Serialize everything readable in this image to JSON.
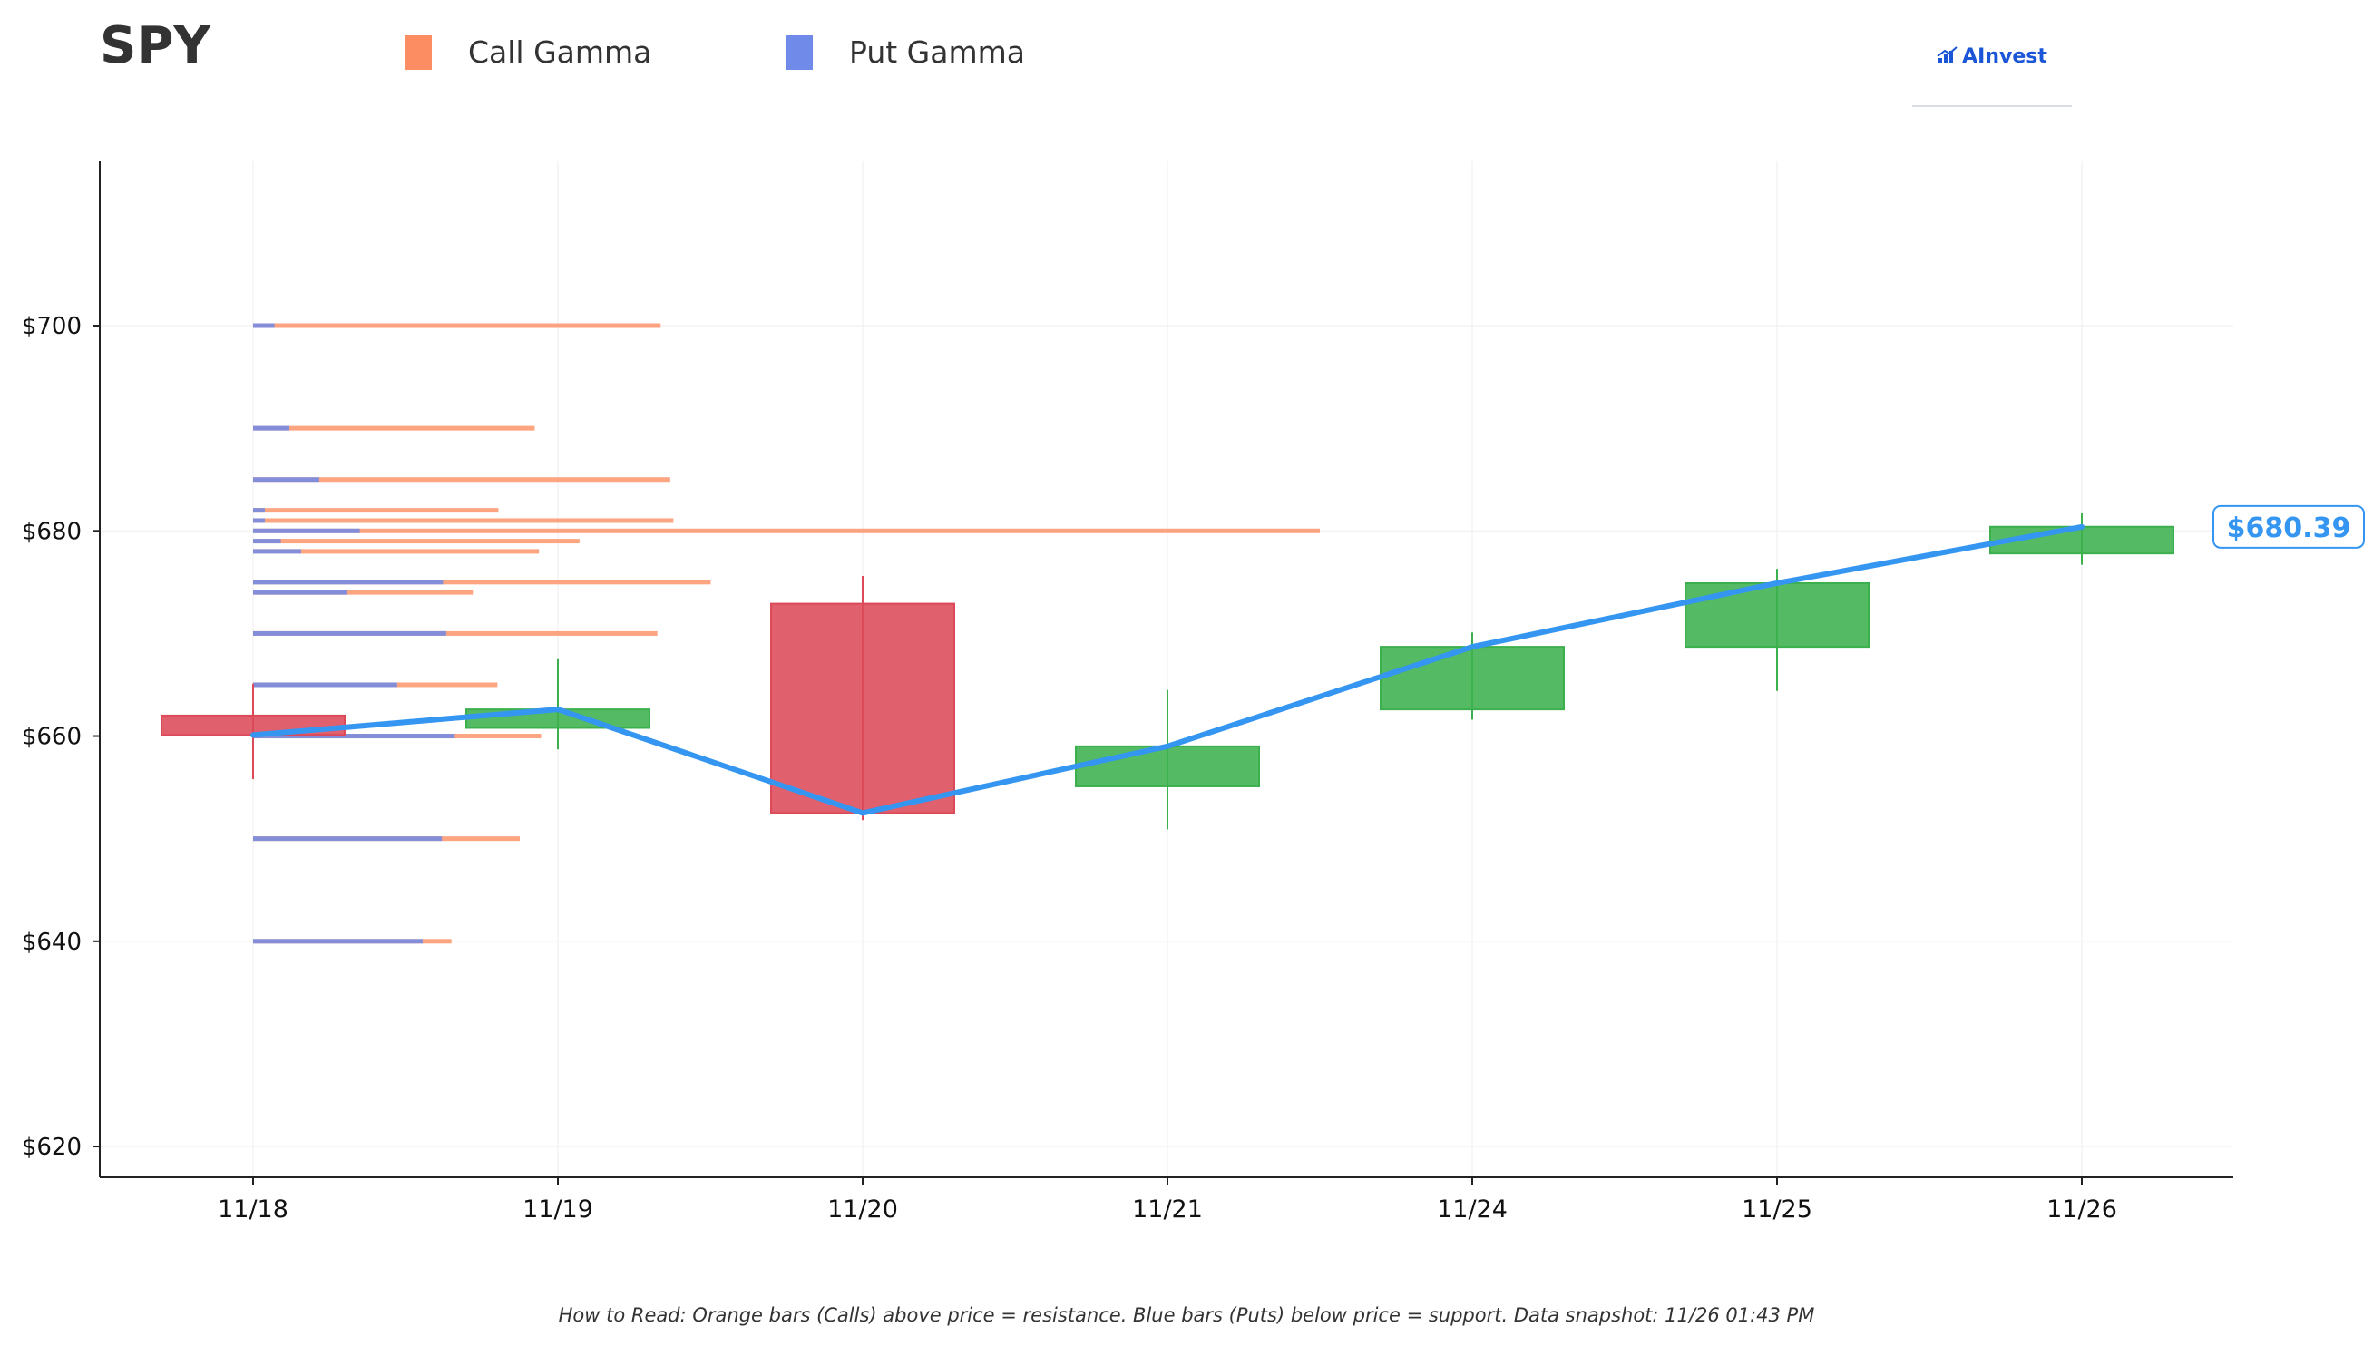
{
  "header": {
    "ticker": "SPY",
    "legend": [
      {
        "label": "Call Gamma",
        "color": "#fc8d62"
      },
      {
        "label": "Put Gamma",
        "color": "#6f8ae8"
      }
    ],
    "logo_text": "AInvest"
  },
  "footnote": "How to Read: Orange bars (Calls) above price = resistance. Blue bars (Puts) below price = support. Data snapshot: 11/26 01:43 PM",
  "price_label": "$680.39",
  "colors": {
    "up": "#3cb04d",
    "down": "#dc4a5a",
    "price_line": "#3596f2",
    "call_gamma": "#fc8d62",
    "put_gamma": "#6f8ae8",
    "axis": "#222222",
    "grid": "#eeeeee"
  },
  "chart_data": {
    "type": "candlestick",
    "title": "SPY",
    "xlabel": "",
    "ylabel": "",
    "categories": [
      "11/18",
      "11/19",
      "11/20",
      "11/21",
      "11/24",
      "11/25",
      "11/26"
    ],
    "ylim": [
      617,
      716
    ],
    "yticks": [
      620,
      640,
      660,
      680,
      700
    ],
    "ytick_labels": [
      "$620",
      "$640",
      "$660",
      "$680",
      "$700"
    ],
    "grid": true,
    "legend_placement": "top",
    "candles": [
      {
        "date": "11/18",
        "open": 662.0,
        "close": 660.1,
        "high": 665.1,
        "low": 655.8
      },
      {
        "date": "11/19",
        "open": 660.8,
        "close": 662.6,
        "high": 667.5,
        "low": 658.7
      },
      {
        "date": "11/20",
        "open": 672.9,
        "close": 652.5,
        "high": 675.6,
        "low": 651.8
      },
      {
        "date": "11/21",
        "open": 655.1,
        "close": 659.0,
        "high": 664.5,
        "low": 650.9
      },
      {
        "date": "11/24",
        "open": 662.6,
        "close": 668.7,
        "high": 670.1,
        "low": 661.6
      },
      {
        "date": "11/25",
        "open": 668.7,
        "close": 674.9,
        "high": 676.3,
        "low": 664.4
      },
      {
        "date": "11/26",
        "open": 677.8,
        "close": 680.4,
        "high": 681.7,
        "low": 676.7
      }
    ],
    "price_series": {
      "name": "",
      "values": [
        660.1,
        662.6,
        652.5,
        659.0,
        668.7,
        674.9,
        680.39
      ]
    },
    "gamma_levels": {
      "x_unit": "relative exposure (0-1)",
      "levels": [
        {
          "strike": 700,
          "call": 0.382,
          "put": 0.02
        },
        {
          "strike": 690,
          "call": 0.264,
          "put": 0.034
        },
        {
          "strike": 685,
          "call": 0.391,
          "put": 0.062
        },
        {
          "strike": 682,
          "call": 0.23,
          "put": 0.011
        },
        {
          "strike": 681,
          "call": 0.394,
          "put": 0.011
        },
        {
          "strike": 680,
          "call": 1.0,
          "put": 0.1
        },
        {
          "strike": 679,
          "call": 0.306,
          "put": 0.026
        },
        {
          "strike": 678,
          "call": 0.268,
          "put": 0.045
        },
        {
          "strike": 675,
          "call": 0.429,
          "put": 0.178
        },
        {
          "strike": 674,
          "call": 0.206,
          "put": 0.088
        },
        {
          "strike": 670,
          "call": 0.379,
          "put": 0.181
        },
        {
          "strike": 665,
          "call": 0.229,
          "put": 0.135
        },
        {
          "strike": 660,
          "call": 0.27,
          "put": 0.189
        },
        {
          "strike": 650,
          "call": 0.25,
          "put": 0.177
        },
        {
          "strike": 640,
          "call": 0.186,
          "put": 0.159
        }
      ]
    }
  }
}
